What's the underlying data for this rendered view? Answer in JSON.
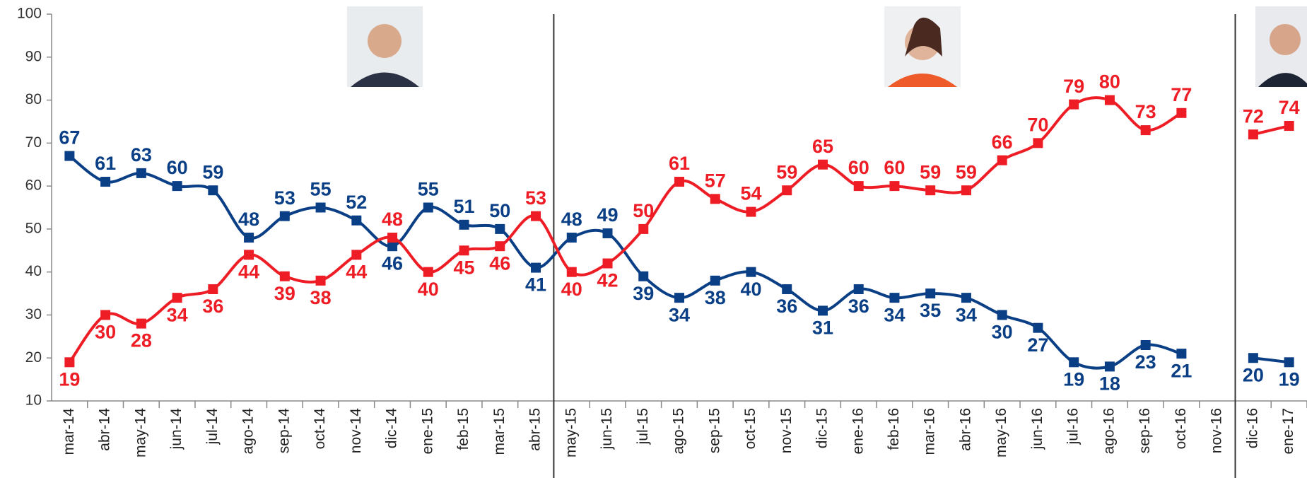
{
  "chart_data": {
    "type": "line",
    "categories": [
      "mar-14",
      "abr-14",
      "may-14",
      "jun-14",
      "jul-14",
      "ago-14",
      "sep-14",
      "oct-14",
      "nov-14",
      "dic-14",
      "ene-15",
      "feb-15",
      "mar-15",
      "abr-15",
      "may-15",
      "jun-15",
      "jul-15",
      "ago-15",
      "sep-15",
      "oct-15",
      "nov-15",
      "dic-15",
      "ene-16",
      "feb-16",
      "mar-16",
      "abr-16",
      "may-16",
      "jun-16",
      "jul-16",
      "ago-16",
      "sep-16",
      "oct-16",
      "nov-16",
      "dic-16",
      "ene-17"
    ],
    "series": [
      {
        "color": "#0a3f86",
        "values": [
          67,
          61,
          63,
          60,
          59,
          48,
          53,
          55,
          52,
          46,
          55,
          51,
          50,
          41,
          48,
          49,
          39,
          34,
          38,
          40,
          36,
          31,
          36,
          34,
          35,
          34,
          30,
          27,
          19,
          18,
          23,
          21,
          null,
          20,
          19
        ]
      },
      {
        "color": "#ee1d25",
        "values": [
          19,
          30,
          28,
          34,
          36,
          44,
          39,
          38,
          44,
          48,
          40,
          45,
          46,
          53,
          40,
          42,
          50,
          61,
          57,
          54,
          59,
          65,
          60,
          60,
          59,
          59,
          66,
          70,
          79,
          80,
          73,
          77,
          null,
          72,
          74
        ]
      }
    ],
    "ylim": [
      10,
      100
    ],
    "yticks": [
      10,
      20,
      30,
      40,
      50,
      60,
      70,
      80,
      90,
      100
    ],
    "grid": false
  }
}
